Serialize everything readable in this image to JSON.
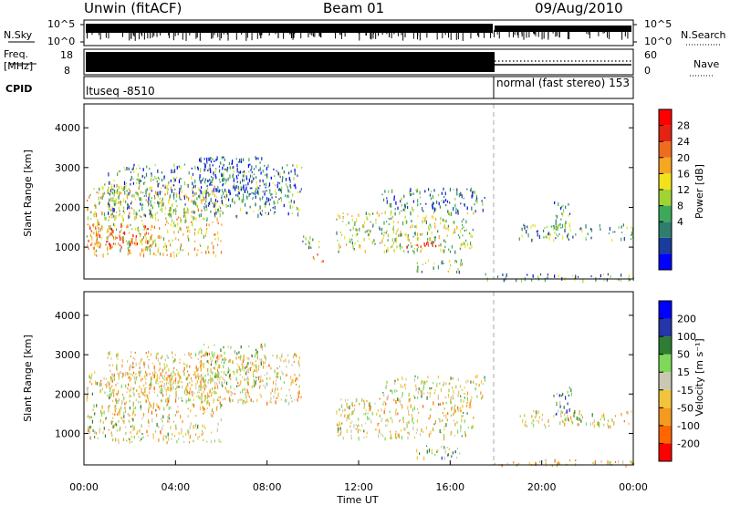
{
  "header": {
    "title": "Unwin (fitACF)",
    "beam": "Beam 01",
    "date": "09/Aug/2010"
  },
  "top_panels": {
    "noise": {
      "left_label": "N.Sky",
      "left_ticks": [
        "10^5",
        "10^0"
      ],
      "right_ticks": [
        "10^5",
        "10^0"
      ],
      "right_label": "N.Search"
    },
    "freq": {
      "label_line1": "Freq.",
      "label_line2": "[MHz]",
      "left_ticks": [
        "18",
        "8"
      ],
      "right_ticks": [
        "60",
        "0"
      ],
      "right_label": "Nave"
    },
    "cpid": {
      "label": "CPID",
      "segment1": "ltuseq -8510",
      "segment2": "normal (fast stereo) 153"
    }
  },
  "chart_data": [
    {
      "type": "heatmap",
      "panel": "power",
      "ylabel": "Slant Range [km]",
      "xlabel": "",
      "yticks": [
        1000,
        2000,
        3000,
        4000
      ],
      "ylim": [
        200,
        4600
      ],
      "xlim_hours": [
        0,
        24
      ],
      "colorbar": {
        "label": "Power [dB]",
        "ticks": [
          "28",
          "24",
          "20",
          "16",
          "12",
          "8",
          "4"
        ],
        "colors": [
          "#0000ff",
          "#1a3c9c",
          "#2e7d6e",
          "#3daa5a",
          "#9fd435",
          "#f2e21c",
          "#f5a623",
          "#ef6c1e",
          "#e32414",
          "#ff0000"
        ]
      },
      "scatter_regions": [
        {
          "t0": 0.1,
          "t1": 6.0,
          "r0": 800,
          "r1": 2600,
          "level": 0.55
        },
        {
          "t0": 0.1,
          "t1": 3.0,
          "r0": 1000,
          "r1": 1600,
          "level": 0.8
        },
        {
          "t0": 1.0,
          "t1": 9.5,
          "r0": 1800,
          "r1": 3100,
          "level": 0.3
        },
        {
          "t0": 5.0,
          "t1": 8.0,
          "r0": 2200,
          "r1": 3300,
          "level": 0.15
        },
        {
          "t0": 9.5,
          "t1": 10.5,
          "r0": 1000,
          "r1": 1300,
          "level": 0.35
        },
        {
          "t0": 10.0,
          "t1": 10.6,
          "r0": 650,
          "r1": 850,
          "level": 0.9
        },
        {
          "t0": 11.0,
          "t1": 17.0,
          "r0": 900,
          "r1": 1900,
          "level": 0.45
        },
        {
          "t0": 13.0,
          "t1": 17.5,
          "r0": 1900,
          "r1": 2500,
          "level": 0.25
        },
        {
          "t0": 14.0,
          "t1": 15.5,
          "r0": 950,
          "r1": 1150,
          "level": 0.95
        },
        {
          "t0": 14.5,
          "t1": 16.5,
          "r0": 400,
          "r1": 700,
          "level": 0.4
        },
        {
          "t0": 19.0,
          "t1": 24.0,
          "r0": 1200,
          "r1": 1600,
          "level": 0.35
        },
        {
          "t0": 20.5,
          "t1": 21.3,
          "r0": 1500,
          "r1": 2200,
          "level": 0.3
        },
        {
          "t0": 17.5,
          "t1": 24.0,
          "r0": 200,
          "r1": 350,
          "level": 0.3
        }
      ]
    },
    {
      "type": "heatmap",
      "panel": "velocity",
      "ylabel": "Slant Range [km]",
      "xlabel": "Time UT",
      "yticks": [
        1000,
        2000,
        3000,
        4000
      ],
      "ylim": [
        200,
        4600
      ],
      "xlim_hours": [
        0,
        24
      ],
      "xticks": [
        "00:00",
        "04:00",
        "08:00",
        "12:00",
        "16:00",
        "20:00",
        "00:00"
      ],
      "colorbar": {
        "label": "Velocity [m s⁻¹]",
        "ticks": [
          "200",
          "100",
          "50",
          "15",
          "-15",
          "-50",
          "-100",
          "-200"
        ],
        "colors": [
          "#ff0000",
          "#ff6600",
          "#f59a20",
          "#f2c43c",
          "#c8c8b4",
          "#7ed957",
          "#2e7d32",
          "#2436a8",
          "#0000ff"
        ]
      },
      "scatter_regions": [
        {
          "t0": 0.1,
          "t1": 6.0,
          "r0": 800,
          "r1": 2600,
          "level": 0.45
        },
        {
          "t0": 1.0,
          "t1": 9.5,
          "r0": 1800,
          "r1": 3100,
          "level": 0.4
        },
        {
          "t0": 5.0,
          "t1": 8.0,
          "r0": 2200,
          "r1": 3300,
          "level": 0.5
        },
        {
          "t0": 11.0,
          "t1": 17.0,
          "r0": 900,
          "r1": 1900,
          "level": 0.45
        },
        {
          "t0": 13.0,
          "t1": 17.5,
          "r0": 1900,
          "r1": 2500,
          "level": 0.5
        },
        {
          "t0": 14.5,
          "t1": 16.5,
          "r0": 400,
          "r1": 700,
          "level": 0.6
        },
        {
          "t0": 19.0,
          "t1": 24.0,
          "r0": 1200,
          "r1": 1600,
          "level": 0.45
        },
        {
          "t0": 20.5,
          "t1": 21.3,
          "r0": 1500,
          "r1": 2200,
          "level": 0.7
        },
        {
          "t0": 17.5,
          "t1": 24.0,
          "r0": 200,
          "r1": 350,
          "level": 0.35
        }
      ]
    }
  ]
}
